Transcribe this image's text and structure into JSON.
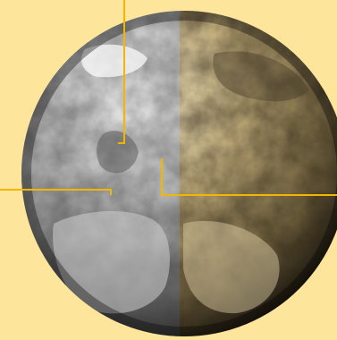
{
  "colors": {
    "background": "#fde59c",
    "leader_line": "#f2b600",
    "globe_left_light": "#d8d8d8",
    "globe_left_dark": "#2a2a2a",
    "globe_right_light": "#d9c9a2",
    "globe_right_dark": "#1f1a12"
  },
  "icons": {
    "globe": "earth-globe-icon"
  }
}
